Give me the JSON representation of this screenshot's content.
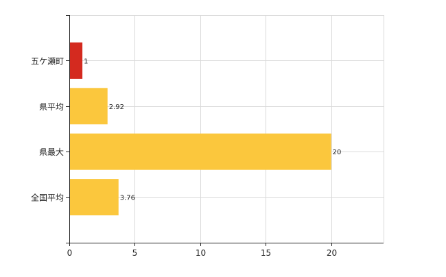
{
  "chart_data": {
    "type": "bar",
    "orientation": "horizontal",
    "categories": [
      "五ケ瀬町",
      "県平均",
      "県最大",
      "全国平均"
    ],
    "values": [
      1,
      2.92,
      20,
      3.76
    ],
    "data_labels": [
      "1",
      "2.92",
      "20",
      "3.76"
    ],
    "xlim": [
      0,
      24
    ],
    "xticks": [
      0,
      5,
      10,
      15,
      20
    ],
    "tick_labels": [
      "0",
      "5",
      "10",
      "15",
      "20"
    ],
    "grid": true,
    "legend": "none",
    "title": "",
    "xlabel": "",
    "ylabel": ""
  },
  "colors": {
    "highlight": "#d42a1f",
    "default": "#fbc73d",
    "grid": "#d9d9d9",
    "axis": "#222222"
  }
}
